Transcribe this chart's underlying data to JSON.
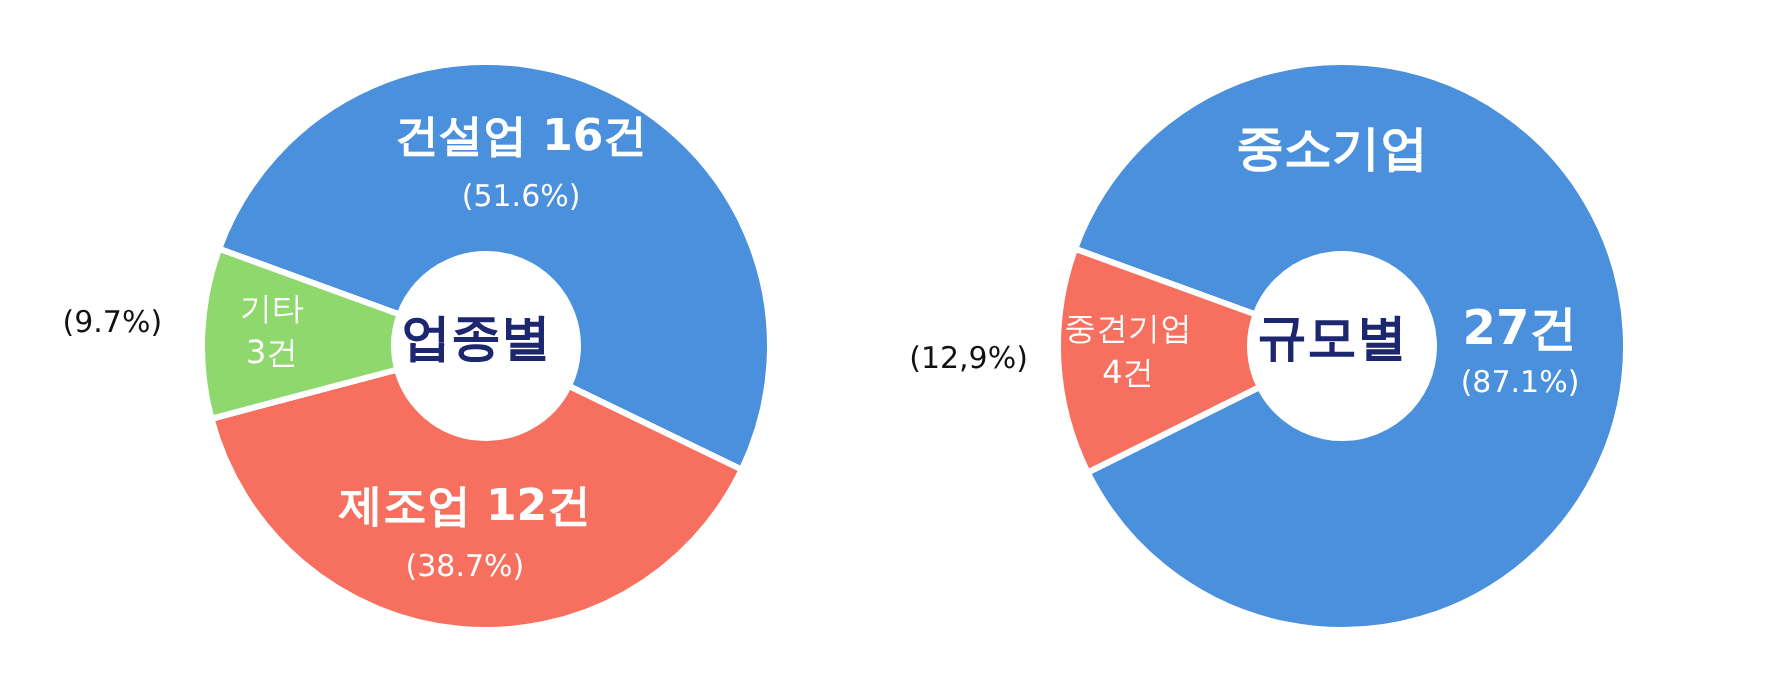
{
  "chart_data": [
    {
      "type": "donut",
      "title": "업종별",
      "categories": [
        "건설업",
        "제조업",
        "기타"
      ],
      "values": [
        16,
        12,
        3
      ],
      "colors": [
        "#4a90dc",
        "#f7705f",
        "#8fd86e"
      ],
      "value_labels": [
        "16건",
        "12건",
        "3건"
      ],
      "annotations": [
        {
          "text": "(51.6%)",
          "x": "건설업"
        },
        {
          "text": "(38.7%)",
          "x": "제조업"
        },
        {
          "text": "(9.7%)",
          "x": "기타"
        }
      ]
    },
    {
      "type": "donut",
      "title": "규모별",
      "categories": [
        "중소기업",
        "중견기업"
      ],
      "values": [
        27,
        4
      ],
      "colors": [
        "#4a90dc",
        "#f7705f"
      ],
      "value_labels": [
        "27건",
        "4건"
      ],
      "annotations": [
        {
          "text": "(87.1%)",
          "x": "중소기업"
        },
        {
          "text": "(12,9%)",
          "x": "중견기업"
        }
      ]
    }
  ]
}
